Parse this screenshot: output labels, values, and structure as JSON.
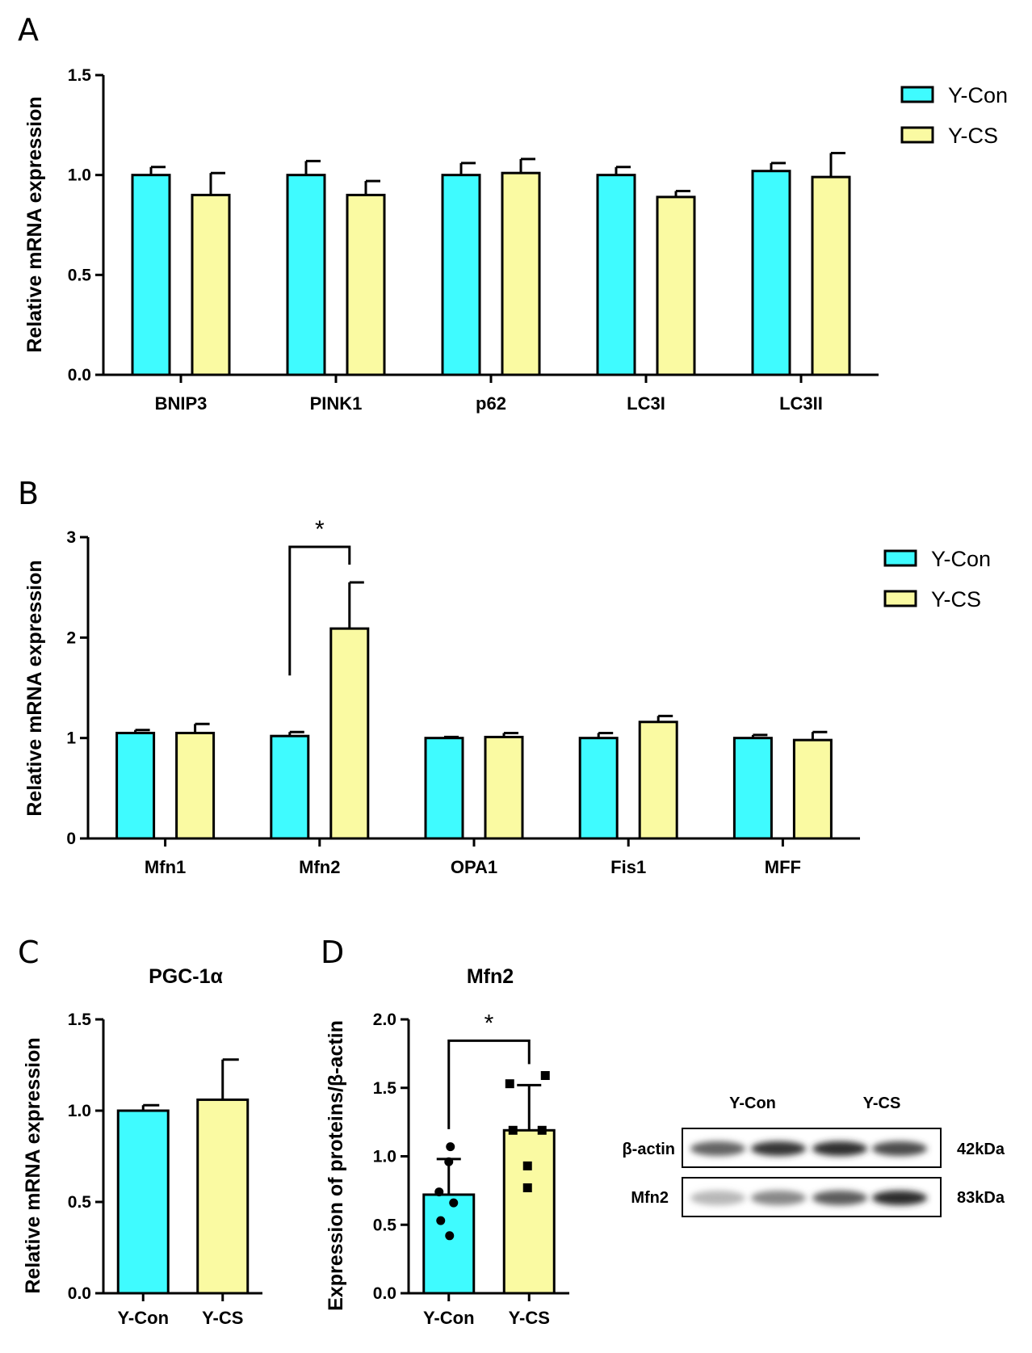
{
  "colors": {
    "con": "#3ffbff",
    "cs": "#fafaa2",
    "ink": "#000000"
  },
  "legend_labels": [
    "Y-Con",
    "Y-CS"
  ],
  "chart_data": [
    {
      "id": "A",
      "panel_label": "A",
      "type": "bar",
      "title": "",
      "ylabel": "Relative mRNA expression",
      "xlabel": "",
      "ylim": [
        0,
        1.5
      ],
      "yticks": [
        "0.0",
        "0.5",
        "1.0",
        "1.5"
      ],
      "categories": [
        "BNIP3",
        "PINK1",
        "p62",
        "LC3I",
        "LC3II"
      ],
      "series": [
        {
          "name": "Y-Con",
          "values": [
            1.0,
            1.0,
            1.0,
            1.0,
            1.02
          ],
          "errors": [
            0.04,
            0.07,
            0.06,
            0.04,
            0.04
          ]
        },
        {
          "name": "Y-CS",
          "values": [
            0.9,
            0.9,
            1.01,
            0.89,
            0.99
          ],
          "errors": [
            0.11,
            0.07,
            0.07,
            0.03,
            0.12
          ]
        }
      ],
      "legend": "top-right"
    },
    {
      "id": "B",
      "panel_label": "B",
      "type": "bar",
      "title": "",
      "ylabel": "Relative mRNA expression",
      "xlabel": "",
      "ylim": [
        0,
        3
      ],
      "yticks": [
        "0",
        "1",
        "2",
        "3"
      ],
      "categories": [
        "Mfn1",
        "Mfn2",
        "OPA1",
        "Fis1",
        "MFF"
      ],
      "series": [
        {
          "name": "Y-Con",
          "values": [
            1.05,
            1.02,
            1.0,
            1.0,
            1.0
          ],
          "errors": [
            0.03,
            0.04,
            0.01,
            0.05,
            0.03
          ]
        },
        {
          "name": "Y-CS",
          "values": [
            1.05,
            2.09,
            1.01,
            1.16,
            0.98
          ],
          "errors": [
            0.09,
            0.46,
            0.04,
            0.06,
            0.08
          ]
        }
      ],
      "significance": {
        "category": "Mfn2",
        "label": "*"
      },
      "legend": "top-right"
    },
    {
      "id": "C",
      "panel_label": "C",
      "type": "bar",
      "title": "PGC-1α",
      "ylabel": "Relative mRNA expression",
      "xlabel": "",
      "ylim": [
        0,
        1.5
      ],
      "yticks": [
        "0.0",
        "0.5",
        "1.0",
        "1.5"
      ],
      "categories": [
        "Y-Con",
        "Y-CS"
      ],
      "values": [
        1.0,
        1.06
      ],
      "errors": [
        0.03,
        0.22
      ]
    },
    {
      "id": "D",
      "panel_label": "D",
      "type": "bar",
      "title": "Mfn2",
      "ylabel": "Expression of proteins/β-actin",
      "xlabel": "",
      "ylim": [
        0,
        2.0
      ],
      "yticks": [
        "0.0",
        "0.5",
        "1.0",
        "1.5",
        "2.0"
      ],
      "categories": [
        "Y-Con",
        "Y-CS"
      ],
      "values": [
        0.72,
        1.19
      ],
      "errors": [
        0.26,
        0.33
      ],
      "points": [
        [
          1.07,
          0.96,
          0.74,
          0.66,
          0.53,
          0.42
        ],
        [
          1.59,
          1.53,
          1.19,
          1.19,
          0.93,
          0.77
        ]
      ],
      "significance": {
        "label": "*"
      }
    }
  ],
  "blot": {
    "lane_groups": [
      "Y-Con",
      "Y-CS"
    ],
    "rows": [
      {
        "label": "β-actin",
        "size": "42kDa",
        "intensities": [
          0.62,
          0.85,
          0.88,
          0.74
        ]
      },
      {
        "label": "Mfn2",
        "size": "83kDa",
        "intensities": [
          0.22,
          0.45,
          0.66,
          0.9
        ]
      }
    ]
  }
}
